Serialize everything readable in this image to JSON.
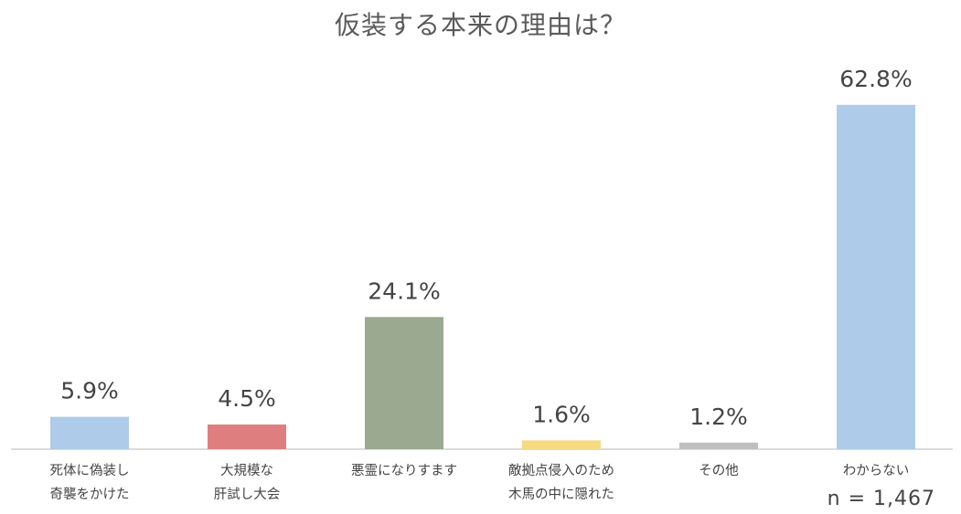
{
  "chart_data": {
    "type": "bar",
    "title": "仮装する本来の理由は？",
    "categories": [
      [
        "死体に偽装し",
        "奇襲をかけた"
      ],
      [
        "大規模な",
        "肝試し大会"
      ],
      [
        "悪霊になりすます"
      ],
      [
        "敵拠点侵入のため",
        "木馬の中に隠れた"
      ],
      [
        "その他"
      ],
      [
        "わからない"
      ]
    ],
    "values": [
      5.9,
      4.5,
      24.1,
      1.6,
      1.2,
      62.8
    ],
    "value_labels": [
      "5.9%",
      "4.5%",
      "24.1%",
      "1.6%",
      "1.2%",
      "62.8%"
    ],
    "colors": [
      "#aecce9",
      "#df7e7e",
      "#9aa98f",
      "#f5da80",
      "#bfbfbf",
      "#aecce9"
    ],
    "ylim": [
      0,
      66.6
    ],
    "grid": false,
    "xlabel": "",
    "ylabel": "",
    "note": "n = 1,467"
  }
}
